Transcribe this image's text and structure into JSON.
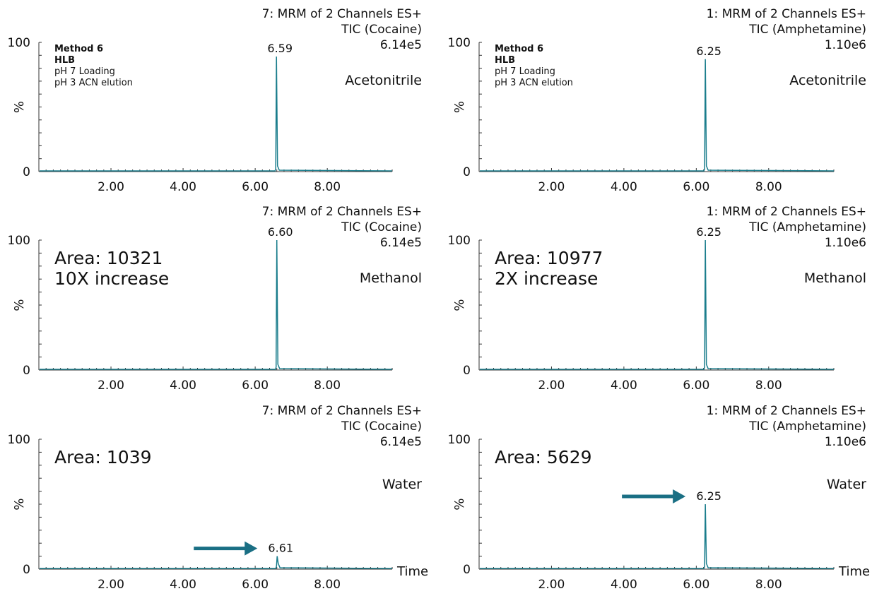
{
  "chart_data": [
    {
      "type": "line",
      "header": [
        "7: MRM of 2 Channels ES+",
        "TIC (Cocaine)",
        "6.14e5"
      ],
      "solvent": "Acetonitrile",
      "method": [
        "Method 6",
        "HLB",
        "pH 7 Loading",
        "pH 3 ACN elution"
      ],
      "area": [],
      "ylabel": "%",
      "yticks": [
        "100",
        "0"
      ],
      "xticks": [
        "2.00",
        "4.00",
        "6.00",
        "8.00"
      ],
      "xlabel": "",
      "xlim": [
        0,
        9.8
      ],
      "ylim": [
        0,
        100
      ],
      "peak": {
        "x": 6.59,
        "y": 89,
        "label": "6.59"
      },
      "arrow": false
    },
    {
      "type": "line",
      "header": [
        "1: MRM of 2 Channels ES+",
        "TIC (Amphetamine)",
        "1.10e6"
      ],
      "solvent": "Acetonitrile",
      "method": [
        "Method 6",
        "HLB",
        "pH 7 Loading",
        "pH 3 ACN elution"
      ],
      "area": [],
      "ylabel": "%",
      "yticks": [
        "100",
        "0"
      ],
      "xticks": [
        "2.00",
        "4.00",
        "6.00",
        "8.00"
      ],
      "xlabel": "",
      "xlim": [
        0,
        9.8
      ],
      "ylim": [
        0,
        100
      ],
      "peak": {
        "x": 6.25,
        "y": 87,
        "label": "6.25"
      },
      "arrow": false
    },
    {
      "type": "line",
      "header": [
        "7: MRM of 2 Channels ES+",
        "TIC (Cocaine)",
        "6.14e5"
      ],
      "solvent": "Methanol",
      "method": [],
      "area": [
        "Area: 10321",
        "10X increase"
      ],
      "ylabel": "%",
      "yticks": [
        "100",
        "0"
      ],
      "xticks": [
        "2.00",
        "4.00",
        "6.00",
        "8.00"
      ],
      "xlabel": "",
      "xlim": [
        0,
        9.8
      ],
      "ylim": [
        0,
        100
      ],
      "peak": {
        "x": 6.6,
        "y": 100,
        "label": "6.60"
      },
      "arrow": false
    },
    {
      "type": "line",
      "header": [
        "1: MRM of 2 Channels ES+",
        "TIC (Amphetamine)",
        "1.10e6"
      ],
      "solvent": "Methanol",
      "method": [],
      "area": [
        "Area: 10977",
        "2X increase"
      ],
      "ylabel": "%",
      "yticks": [
        "100",
        "0"
      ],
      "xticks": [
        "2.00",
        "4.00",
        "6.00",
        "8.00"
      ],
      "xlabel": "",
      "xlim": [
        0,
        9.8
      ],
      "ylim": [
        0,
        100
      ],
      "peak": {
        "x": 6.25,
        "y": 100,
        "label": "6.25"
      },
      "arrow": false
    },
    {
      "type": "line",
      "header": [
        "7: MRM of 2 Channels ES+",
        "TIC (Cocaine)",
        "6.14e5"
      ],
      "solvent": "Water",
      "method": [],
      "area": [
        "Area: 1039"
      ],
      "ylabel": "%",
      "yticks": [
        "100",
        "0"
      ],
      "xticks": [
        "2.00",
        "4.00",
        "6.00",
        "8.00"
      ],
      "xlabel": "Time",
      "xlim": [
        0,
        9.8
      ],
      "ylim": [
        0,
        100
      ],
      "peak": {
        "x": 6.61,
        "y": 10,
        "label": "6.61"
      },
      "arrow": true
    },
    {
      "type": "line",
      "header": [
        "1: MRM of 2 Channels ES+",
        "TIC (Amphetamine)",
        "1.10e6"
      ],
      "solvent": "Water",
      "method": [],
      "area": [
        "Area: 5629"
      ],
      "ylabel": "%",
      "yticks": [
        "100",
        "0"
      ],
      "xticks": [
        "2.00",
        "4.00",
        "6.00",
        "8.00"
      ],
      "xlabel": "Time",
      "xlim": [
        0,
        9.8
      ],
      "ylim": [
        0,
        100
      ],
      "peak": {
        "x": 6.25,
        "y": 50,
        "label": "6.25"
      },
      "arrow": true
    }
  ],
  "colors": {
    "trace": "#1a7d8c",
    "arrow": "#1a6f84",
    "axis": "#333333",
    "text": "#111111"
  }
}
